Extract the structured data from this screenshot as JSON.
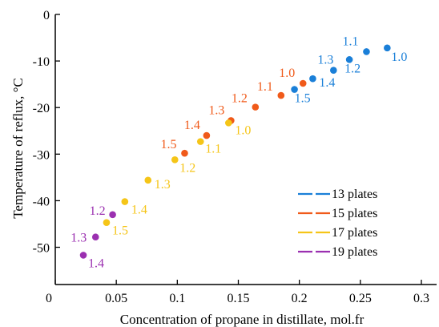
{
  "chart_data": {
    "type": "scatter",
    "title": "",
    "xlabel": "Concentration of propane in distillate, mol.fr",
    "ylabel": "Temperature of reflux, °C",
    "xlim": [
      0,
      0.3
    ],
    "ylim": [
      -58,
      0
    ],
    "x_ticks": [
      0,
      0.05,
      0.1,
      0.15,
      0.2,
      0.25,
      0.3
    ],
    "x_tick_labels": [
      "0",
      "0.05",
      "0.1",
      "0.15",
      "0.2",
      "0.25",
      "0.3"
    ],
    "y_ticks": [
      0,
      -10,
      -20,
      -30,
      -40,
      -50
    ],
    "y_tick_labels": [
      "0",
      "-10",
      "-20",
      "-30",
      "-40",
      "-50"
    ],
    "grid": false,
    "legend_position": "bottom-right",
    "series": [
      {
        "name": "13 plates",
        "color": "#1a7fd8",
        "points": [
          {
            "x": 0.196,
            "y": -16.1,
            "label": "1.5"
          },
          {
            "x": 0.211,
            "y": -13.8,
            "label": "1.4"
          },
          {
            "x": 0.228,
            "y": -12.0,
            "label": "1.3"
          },
          {
            "x": 0.241,
            "y": -9.7,
            "label": "1.2"
          },
          {
            "x": 0.255,
            "y": -8.0,
            "label": "1.1"
          },
          {
            "x": 0.272,
            "y": -7.2,
            "label": "1.0"
          }
        ]
      },
      {
        "name": "15 plates",
        "color": "#f05a1a",
        "points": [
          {
            "x": 0.106,
            "y": -29.8,
            "label": "1.5"
          },
          {
            "x": 0.124,
            "y": -26.0,
            "label": "1.4"
          },
          {
            "x": 0.144,
            "y": -22.8,
            "label": "1.3"
          },
          {
            "x": 0.164,
            "y": -19.9,
            "label": "1.2"
          },
          {
            "x": 0.185,
            "y": -17.4,
            "label": "1.1"
          },
          {
            "x": 0.203,
            "y": -14.8,
            "label": "1.0"
          }
        ]
      },
      {
        "name": "17 plates",
        "color": "#f5c518",
        "points": [
          {
            "x": 0.042,
            "y": -44.7,
            "label": "1.5"
          },
          {
            "x": 0.057,
            "y": -40.2,
            "label": "1.4"
          },
          {
            "x": 0.076,
            "y": -35.6,
            "label": "1.3"
          },
          {
            "x": 0.098,
            "y": -31.2,
            "label": "1.2"
          },
          {
            "x": 0.119,
            "y": -27.3,
            "label": "1.1"
          },
          {
            "x": 0.142,
            "y": -23.3,
            "label": "1.0"
          }
        ]
      },
      {
        "name": "19 plates",
        "color": "#9b30b0",
        "points": [
          {
            "x": 0.023,
            "y": -51.7,
            "label": "1.4"
          },
          {
            "x": 0.033,
            "y": -47.8,
            "label": "1.3"
          },
          {
            "x": 0.047,
            "y": -43.0,
            "label": "1.2"
          }
        ]
      }
    ]
  }
}
